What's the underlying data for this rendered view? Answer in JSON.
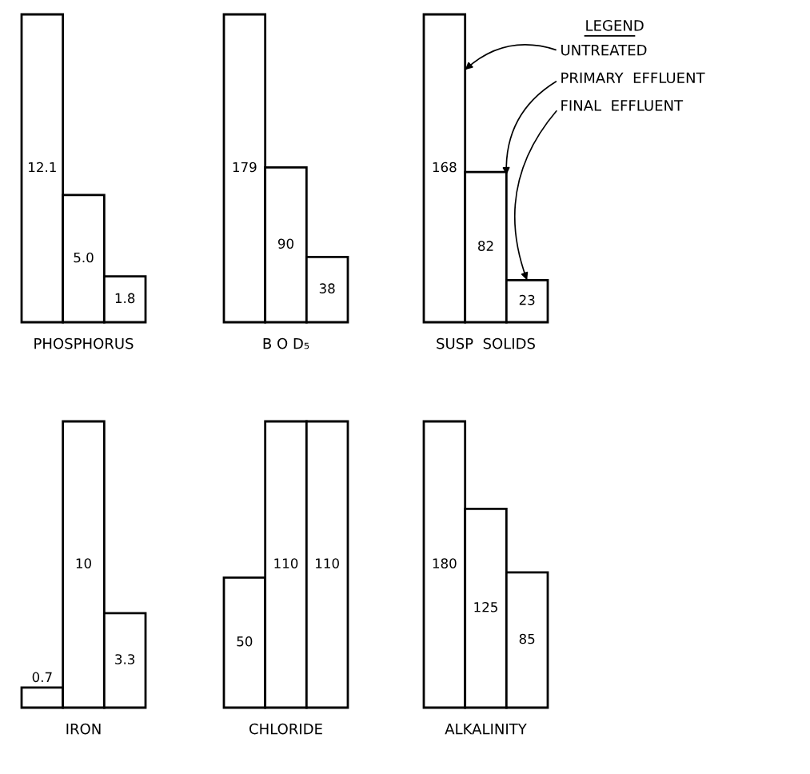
{
  "chart_data": [
    {
      "type": "bar",
      "xlabel": "PHOSPHORUS",
      "categories": [
        null
      ],
      "data_labels": true,
      "series": [
        {
          "color": "#ffffff",
          "values": [
            12.1
          ]
        },
        {
          "color": "#ffffff",
          "values": [
            5.0
          ],
          "value_labels": [
            "5.0"
          ]
        },
        {
          "color": "#ffffff",
          "values": [
            1.8
          ]
        }
      ]
    },
    {
      "type": "bar",
      "xlabel": "B O D₅",
      "categories": [
        null
      ],
      "data_labels": true,
      "series": [
        {
          "color": "#ffffff",
          "values": [
            179
          ]
        },
        {
          "color": "#ffffff",
          "values": [
            90
          ]
        },
        {
          "color": "#ffffff",
          "values": [
            38
          ]
        }
      ]
    },
    {
      "type": "bar",
      "xlabel": "SUSP  SOLIDS",
      "categories": [
        null
      ],
      "data_labels": true,
      "legend": "right",
      "legend_title": "LEGEND",
      "series": [
        {
          "name": "UNTREATED",
          "color": "#ffffff",
          "values": [
            168
          ]
        },
        {
          "name": "PRIMARY  EFFLUENT",
          "color": "#ffffff",
          "values": [
            82
          ]
        },
        {
          "name": "FINAL  EFFLUENT",
          "color": "#ffffff",
          "values": [
            23
          ]
        }
      ]
    },
    {
      "type": "bar",
      "xlabel": "IRON",
      "categories": [
        null
      ],
      "data_labels": true,
      "series": [
        {
          "color": "#ffffff",
          "values": [
            0.7
          ]
        },
        {
          "color": "#ffffff",
          "values": [
            10
          ]
        },
        {
          "color": "#ffffff",
          "values": [
            3.3
          ]
        }
      ]
    },
    {
      "type": "bar",
      "xlabel": "CHLORIDE",
      "categories": [
        null
      ],
      "data_labels": true,
      "series": [
        {
          "color": "#ffffff",
          "values": [
            50
          ]
        },
        {
          "color": "#ffffff",
          "values": [
            110
          ]
        },
        {
          "color": "#ffffff",
          "values": [
            110
          ]
        }
      ]
    },
    {
      "type": "bar",
      "xlabel": "ALKALINITY",
      "categories": [
        null
      ],
      "data_labels": true,
      "series": [
        {
          "color": "#ffffff",
          "values": [
            180
          ]
        },
        {
          "color": "#ffffff",
          "values": [
            125
          ]
        },
        {
          "color": "#ffffff",
          "values": [
            85
          ]
        }
      ]
    }
  ]
}
